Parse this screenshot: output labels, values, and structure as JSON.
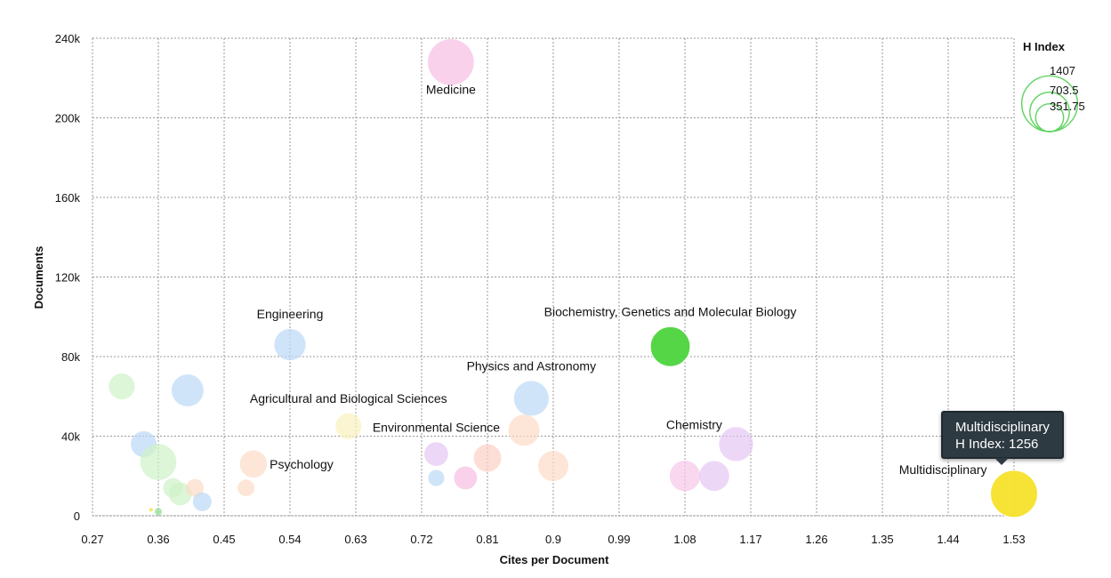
{
  "chart_data": {
    "type": "scatter",
    "subtype": "bubble",
    "title": "",
    "xlabel": "Cites per Document",
    "ylabel": "Documents",
    "x_ticks": [
      "0.27",
      "0.36",
      "0.45",
      "0.54",
      "0.63",
      "0.72",
      "0.81",
      "0.9",
      "0.99",
      "1.08",
      "1.17",
      "1.26",
      "1.35",
      "1.44",
      "1.53"
    ],
    "y_ticks": [
      "0",
      "40k",
      "80k",
      "120k",
      "160k",
      "200k",
      "240k"
    ],
    "xlim": [
      0.27,
      1.53
    ],
    "ylim": [
      0,
      240000
    ],
    "grid": true,
    "size_metric": "H Index",
    "legend": {
      "title": "H Index",
      "values": [
        1407,
        703.5,
        351.75
      ],
      "labels": [
        "1407",
        "703.5",
        "351.75"
      ],
      "position": "top-right",
      "color": "#5fd35f"
    },
    "points": [
      {
        "name": "Medicine",
        "x": 0.76,
        "y": 228000,
        "h": 1200,
        "color": "#f7bde3",
        "label": "Medicine",
        "label_pos": "below",
        "highlight": false
      },
      {
        "name": "Engineering",
        "x": 0.54,
        "y": 86000,
        "h": 560,
        "color": "#bcd9f7",
        "label": "Engineering",
        "label_pos": "above",
        "highlight": false
      },
      {
        "name": "Biochemistry, Genetics and Molecular Biology",
        "x": 1.06,
        "y": 85000,
        "h": 900,
        "color": "#4cd43c",
        "label": "Biochemistry, Genetics and Molecular Biology",
        "label_pos": "above",
        "highlight": true
      },
      {
        "name": "Physics and Astronomy",
        "x": 0.87,
        "y": 59000,
        "h": 690,
        "color": "#bcd9f7",
        "label": "Physics and Astronomy",
        "label_pos": "above",
        "highlight": false
      },
      {
        "name": "Agricultural and Biological Sciences",
        "x": 0.62,
        "y": 45000,
        "h": 380,
        "color": "#fbf1bd",
        "label": "Agricultural and Biological Sciences",
        "label_pos": "above",
        "highlight": false
      },
      {
        "name": "Environmental Science",
        "x": 0.74,
        "y": 31000,
        "h": 320,
        "color": "#e5c6f4",
        "label": "Environmental Science",
        "label_pos": "above",
        "highlight": false
      },
      {
        "name": "Chemistry",
        "x": 1.15,
        "y": 36000,
        "h": 660,
        "color": "#e5c6f4",
        "label": "Chemistry",
        "label_pos": "above-left",
        "highlight": false
      },
      {
        "name": "Psychology",
        "x": 0.49,
        "y": 26000,
        "h": 420,
        "color": "#fcdcc6",
        "label": "Psychology",
        "label_pos": "right",
        "highlight": false
      },
      {
        "name": "Multidisciplinary",
        "x": 1.53,
        "y": 11000,
        "h": 1256,
        "color": "#f5e12a",
        "label": "Multidisciplinary",
        "label_pos": "left",
        "highlight": true
      },
      {
        "name": "",
        "x": 0.31,
        "y": 65000,
        "h": 380,
        "color": "#cdf2c6",
        "label": "",
        "highlight": false
      },
      {
        "name": "",
        "x": 0.4,
        "y": 63000,
        "h": 580,
        "color": "#bcd9f7",
        "label": "",
        "highlight": false
      },
      {
        "name": "",
        "x": 0.34,
        "y": 36000,
        "h": 380,
        "color": "#bcd9f7",
        "label": "",
        "highlight": false
      },
      {
        "name": "",
        "x": 0.36,
        "y": 27000,
        "h": 740,
        "color": "#cdf2c6",
        "label": "",
        "highlight": false
      },
      {
        "name": "",
        "x": 0.38,
        "y": 14000,
        "h": 220,
        "color": "#cdf2c6",
        "label": "",
        "highlight": false
      },
      {
        "name": "",
        "x": 0.39,
        "y": 11000,
        "h": 300,
        "color": "#cdf2c6",
        "label": "",
        "highlight": false
      },
      {
        "name": "",
        "x": 0.41,
        "y": 14000,
        "h": 180,
        "color": "#fcdcc6",
        "label": "",
        "highlight": false
      },
      {
        "name": "",
        "x": 0.42,
        "y": 7000,
        "h": 200,
        "color": "#bcd9f7",
        "label": "",
        "highlight": false
      },
      {
        "name": "",
        "x": 0.36,
        "y": 2000,
        "h": 30,
        "color": "#8fdc8f",
        "label": "",
        "highlight": false
      },
      {
        "name": "",
        "x": 0.35,
        "y": 3000,
        "h": 8,
        "color": "#f5e12a",
        "label": "",
        "highlight": false
      },
      {
        "name": "",
        "x": 0.48,
        "y": 14000,
        "h": 160,
        "color": "#fcdcc6",
        "label": "",
        "highlight": false
      },
      {
        "name": "",
        "x": 0.74,
        "y": 19000,
        "h": 150,
        "color": "#bcd9f7",
        "label": "",
        "highlight": false
      },
      {
        "name": "",
        "x": 0.78,
        "y": 19000,
        "h": 300,
        "color": "#f7bde3",
        "label": "",
        "highlight": false
      },
      {
        "name": "",
        "x": 0.81,
        "y": 29000,
        "h": 430,
        "color": "#fcd0c6",
        "label": "",
        "highlight": false
      },
      {
        "name": "",
        "x": 0.86,
        "y": 43000,
        "h": 550,
        "color": "#fcdcc6",
        "label": "",
        "highlight": false
      },
      {
        "name": "",
        "x": 0.9,
        "y": 25000,
        "h": 520,
        "color": "#fcdcc6",
        "label": "",
        "highlight": false
      },
      {
        "name": "",
        "x": 1.08,
        "y": 20000,
        "h": 530,
        "color": "#f7c6e8",
        "label": "",
        "highlight": false
      },
      {
        "name": "",
        "x": 1.12,
        "y": 20000,
        "h": 510,
        "color": "#e5c6f4",
        "label": "",
        "highlight": false
      }
    ],
    "tooltip": {
      "target": "Multidisciplinary",
      "line1": "Multidisciplinary",
      "line2": "H Index: 1256"
    }
  }
}
